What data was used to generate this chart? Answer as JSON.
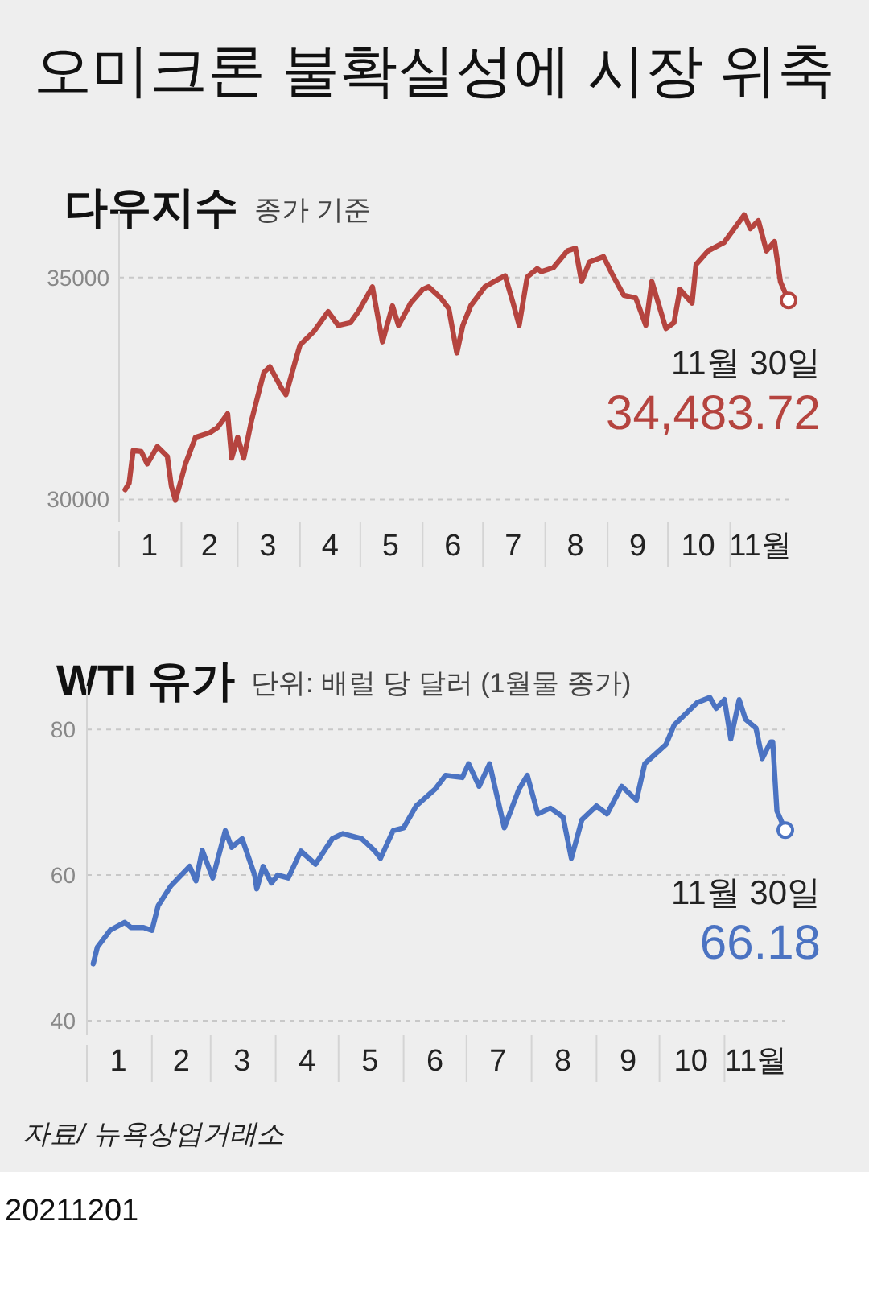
{
  "chart_data": [
    {
      "type": "line",
      "title": "다우지수",
      "subtitle": "종가 기준",
      "x": [
        "2021-01-04",
        "2021-01-06",
        "2021-01-08",
        "2021-01-12",
        "2021-01-15",
        "2021-01-20",
        "2021-01-25",
        "2021-01-27",
        "2021-01-29",
        "2021-02-03",
        "2021-02-08",
        "2021-02-15",
        "2021-02-19",
        "2021-02-24",
        "2021-02-26",
        "2021-03-01",
        "2021-03-04",
        "2021-03-08",
        "2021-03-14",
        "2021-03-17",
        "2021-03-23",
        "2021-03-25",
        "2021-03-30",
        "2021-04-01",
        "2021-04-08",
        "2021-04-15",
        "2021-04-20",
        "2021-04-26",
        "2021-04-30",
        "2021-05-07",
        "2021-05-12",
        "2021-05-17",
        "2021-05-20",
        "2021-05-26",
        "2021-06-01",
        "2021-06-04",
        "2021-06-10",
        "2021-06-14",
        "2021-06-18",
        "2021-06-21",
        "2021-06-25",
        "2021-07-02",
        "2021-07-07",
        "2021-07-12",
        "2021-07-16",
        "2021-07-19",
        "2021-07-23",
        "2021-07-28",
        "2021-07-30",
        "2021-08-05",
        "2021-08-12",
        "2021-08-16",
        "2021-08-19",
        "2021-08-23",
        "2021-08-30",
        "2021-09-03",
        "2021-09-09",
        "2021-09-15",
        "2021-09-20",
        "2021-09-23",
        "2021-09-30",
        "2021-10-04",
        "2021-10-07",
        "2021-10-13",
        "2021-10-15",
        "2021-10-21",
        "2021-10-29",
        "2021-11-08",
        "2021-11-11",
        "2021-11-15",
        "2021-11-19",
        "2021-11-23",
        "2021-11-26",
        "2021-11-30"
      ],
      "series": [
        {
          "color": "#b5443f",
          "values": [
            30220,
            30370,
            31100,
            31080,
            30800,
            31190,
            30970,
            30300,
            29980,
            30800,
            31400,
            31500,
            31620,
            31930,
            30930,
            31400,
            30930,
            31800,
            32860,
            32990,
            32490,
            32360,
            33170,
            33480,
            33790,
            34230,
            33920,
            33980,
            34230,
            34790,
            33550,
            34360,
            33920,
            34420,
            34730,
            34790,
            34540,
            34300,
            33300,
            33920,
            34370,
            34790,
            34920,
            35040,
            34420,
            33920,
            35010,
            35200,
            35130,
            35220,
            35600,
            35660,
            34910,
            35350,
            35470,
            35100,
            34600,
            34540,
            33920,
            34910,
            33850,
            33980,
            34730,
            34420,
            35290,
            35600,
            35790,
            36410,
            36100,
            36280,
            35600,
            35810,
            34900,
            34483.72
          ]
        }
      ],
      "xlim": [
        "2021-01-01",
        "2021-11-30"
      ],
      "ylim": [
        29500,
        36500
      ],
      "yticks": [
        30000,
        35000
      ],
      "xticks": [
        {
          "value": "2021-01-16",
          "label": "1"
        },
        {
          "value": "2021-02-01",
          "label": null
        },
        {
          "value": "2021-02-15",
          "label": "2"
        },
        {
          "value": "2021-03-01",
          "label": null
        },
        {
          "value": "2021-03-16",
          "label": "3"
        },
        {
          "value": "2021-04-01",
          "label": null
        },
        {
          "value": "2021-04-16",
          "label": "4"
        },
        {
          "value": "2021-05-01",
          "label": null
        },
        {
          "value": "2021-05-16",
          "label": "5"
        },
        {
          "value": "2021-06-01",
          "label": null
        },
        {
          "value": "2021-06-16",
          "label": "6"
        },
        {
          "value": "2021-07-01",
          "label": null
        },
        {
          "value": "2021-07-16",
          "label": "7"
        },
        {
          "value": "2021-08-01",
          "label": null
        },
        {
          "value": "2021-08-16",
          "label": "8"
        },
        {
          "value": "2021-09-01",
          "label": null
        },
        {
          "value": "2021-09-16",
          "label": "9"
        },
        {
          "value": "2021-10-01",
          "label": null
        },
        {
          "value": "2021-10-16",
          "label": "10"
        },
        {
          "value": "2021-11-01",
          "label": null
        },
        {
          "value": "2021-11-16",
          "label": "11월"
        }
      ],
      "grid": "y",
      "annotations": [
        "오미크론 불확실성에 시장 위축",
        {
          "text": "11월 30일",
          "x": "2021-11-30",
          "y": 34483.72
        },
        {
          "text": "34,483.72",
          "x": "2021-11-30",
          "y": 34483.72
        }
      ]
    },
    {
      "type": "line",
      "title": "WTI 유가",
      "subtitle": "단위: 배럴 당 달러 (1월물 종가)",
      "x": [
        "2021-01-04",
        "2021-01-06",
        "2021-01-12",
        "2021-01-19",
        "2021-01-22",
        "2021-01-28",
        "2021-02-01",
        "2021-02-04",
        "2021-02-10",
        "2021-02-19",
        "2021-02-22",
        "2021-02-25",
        "2021-03-02",
        "2021-03-08",
        "2021-03-11",
        "2021-03-16",
        "2021-03-22",
        "2021-03-23",
        "2021-03-26",
        "2021-03-30",
        "2021-04-02",
        "2021-04-07",
        "2021-04-13",
        "2021-04-20",
        "2021-04-28",
        "2021-05-03",
        "2021-05-12",
        "2021-05-18",
        "2021-05-21",
        "2021-05-27",
        "2021-06-01",
        "2021-06-07",
        "2021-06-16",
        "2021-06-21",
        "2021-06-29",
        "2021-07-02",
        "2021-07-07",
        "2021-07-12",
        "2021-07-19",
        "2021-07-26",
        "2021-07-30",
        "2021-08-04",
        "2021-08-10",
        "2021-08-16",
        "2021-08-20",
        "2021-08-25",
        "2021-09-01",
        "2021-09-06",
        "2021-09-13",
        "2021-09-20",
        "2021-09-24",
        "2021-10-04",
        "2021-10-08",
        "2021-10-19",
        "2021-10-25",
        "2021-10-28",
        "2021-11-01",
        "2021-11-04",
        "2021-11-08",
        "2021-11-11",
        "2021-11-16",
        "2021-11-19",
        "2021-11-23",
        "2021-11-24",
        "2021-11-26",
        "2021-11-30"
      ],
      "series": [
        {
          "color": "#4b73c2",
          "values": [
            47.8,
            50.1,
            52.4,
            53.5,
            52.8,
            52.8,
            52.4,
            55.8,
            58.5,
            61.2,
            59.2,
            63.4,
            59.6,
            66.1,
            63.8,
            65.0,
            60.0,
            58.1,
            61.2,
            58.9,
            60.0,
            59.6,
            63.3,
            61.5,
            65.0,
            65.7,
            65.0,
            63.4,
            62.3,
            66.1,
            66.5,
            69.5,
            71.8,
            73.7,
            73.4,
            75.3,
            72.2,
            75.3,
            66.5,
            71.8,
            73.7,
            68.4,
            69.2,
            68.0,
            62.3,
            67.6,
            69.5,
            68.4,
            72.2,
            70.3,
            75.3,
            77.9,
            80.6,
            83.7,
            84.4,
            82.9,
            84.1,
            78.7,
            84.1,
            81.4,
            80.2,
            76.0,
            78.3,
            78.3,
            68.8,
            66.18
          ]
        }
      ],
      "xlim": [
        "2021-01-01",
        "2021-11-30"
      ],
      "ylim": [
        38,
        86
      ],
      "yticks": [
        40,
        60,
        80
      ],
      "xticks": [
        {
          "value": "2021-01-16",
          "label": "1"
        },
        {
          "value": "2021-02-01",
          "label": null
        },
        {
          "value": "2021-02-15",
          "label": "2"
        },
        {
          "value": "2021-03-01",
          "label": null
        },
        {
          "value": "2021-03-16",
          "label": "3"
        },
        {
          "value": "2021-04-01",
          "label": null
        },
        {
          "value": "2021-04-16",
          "label": "4"
        },
        {
          "value": "2021-05-01",
          "label": null
        },
        {
          "value": "2021-05-16",
          "label": "5"
        },
        {
          "value": "2021-06-01",
          "label": null
        },
        {
          "value": "2021-06-16",
          "label": "6"
        },
        {
          "value": "2021-07-01",
          "label": null
        },
        {
          "value": "2021-07-16",
          "label": "7"
        },
        {
          "value": "2021-08-01",
          "label": null
        },
        {
          "value": "2021-08-16",
          "label": "8"
        },
        {
          "value": "2021-09-01",
          "label": null
        },
        {
          "value": "2021-09-16",
          "label": "9"
        },
        {
          "value": "2021-10-01",
          "label": null
        },
        {
          "value": "2021-10-16",
          "label": "10"
        },
        {
          "value": "2021-11-01",
          "label": null
        },
        {
          "value": "2021-11-16",
          "label": "11월"
        }
      ],
      "grid": "y",
      "annotations": [
        {
          "text": "11월 30일",
          "x": "2021-11-30",
          "y": 66.18
        },
        {
          "text": "66.18",
          "x": "2021-11-30",
          "y": 66.18
        },
        "자료/ 뉴욕상업거래소",
        "20211201"
      ]
    }
  ]
}
